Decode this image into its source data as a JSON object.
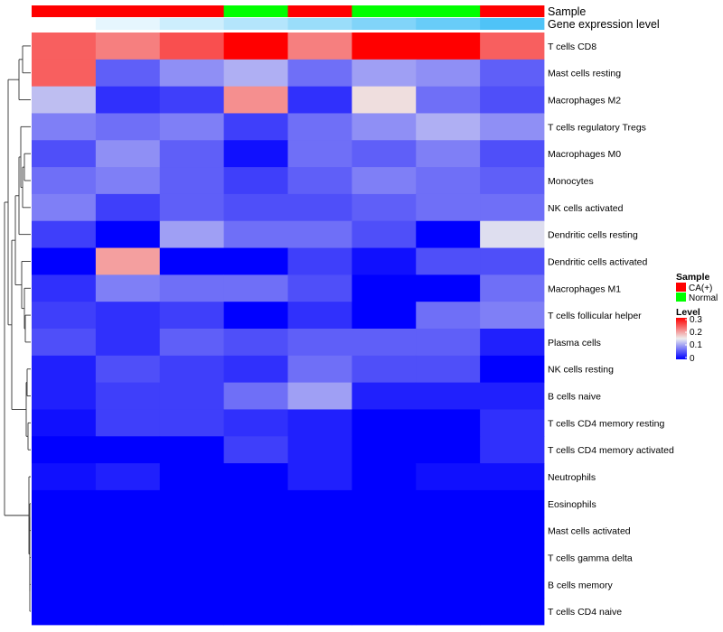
{
  "chart_data": {
    "type": "heatmap",
    "rows": [
      "T cells CD8",
      "Mast cells resting",
      "Macrophages M2",
      "T cells regulatory  Tregs",
      "Macrophages M0",
      "Monocytes",
      "NK cells activated",
      "Dendritic cells resting",
      "Dendritic cells activated",
      "Macrophages M1",
      "T cells follicular helper",
      "Plasma cells",
      "NK cells resting",
      "B cells naive",
      "T cells CD4 memory resting",
      "T cells CD4 memory activated",
      "Neutrophils",
      "Eosinophils",
      "Mast cells activated",
      "T cells gamma delta",
      "B cells memory",
      "T cells CD4 naive"
    ],
    "column_annotations": [
      {
        "name": "Sample",
        "values": [
          "CA(+)",
          "CA(+)",
          "CA(+)",
          "Normal",
          "CA(+)",
          "Normal",
          "Normal",
          "CA(+)"
        ]
      },
      {
        "name": "Gene expression level",
        "values": [
          0.0,
          0.03,
          0.06,
          0.09,
          0.12,
          0.15,
          0.18,
          0.21
        ]
      }
    ],
    "values": [
      [
        0.24,
        0.22,
        0.25,
        0.3,
        0.22,
        0.3,
        0.3,
        0.24
      ],
      [
        0.24,
        0.06,
        0.09,
        0.11,
        0.07,
        0.1,
        0.09,
        0.06
      ],
      [
        0.12,
        0.03,
        0.04,
        0.21,
        0.03,
        0.16,
        0.07,
        0.05
      ],
      [
        0.08,
        0.07,
        0.08,
        0.04,
        0.07,
        0.09,
        0.11,
        0.09
      ],
      [
        0.05,
        0.09,
        0.06,
        0.01,
        0.07,
        0.06,
        0.08,
        0.05
      ],
      [
        0.07,
        0.08,
        0.06,
        0.04,
        0.06,
        0.08,
        0.07,
        0.06
      ],
      [
        0.08,
        0.04,
        0.06,
        0.05,
        0.05,
        0.06,
        0.07,
        0.07
      ],
      [
        0.04,
        0.0,
        0.1,
        0.07,
        0.07,
        0.05,
        0.0,
        0.14
      ],
      [
        0.0,
        0.2,
        0.0,
        0.0,
        0.04,
        0.01,
        0.05,
        0.05
      ],
      [
        0.03,
        0.08,
        0.07,
        0.07,
        0.05,
        0.0,
        0.0,
        0.07
      ],
      [
        0.04,
        0.03,
        0.04,
        0.0,
        0.03,
        0.0,
        0.07,
        0.08
      ],
      [
        0.05,
        0.03,
        0.06,
        0.05,
        0.06,
        0.06,
        0.06,
        0.02
      ],
      [
        0.02,
        0.05,
        0.04,
        0.03,
        0.07,
        0.05,
        0.05,
        0.0
      ],
      [
        0.02,
        0.04,
        0.04,
        0.07,
        0.1,
        0.02,
        0.02,
        0.02
      ],
      [
        0.01,
        0.04,
        0.04,
        0.03,
        0.02,
        0.0,
        0.0,
        0.03
      ],
      [
        0.0,
        0.0,
        0.0,
        0.04,
        0.02,
        0.0,
        0.0,
        0.03
      ],
      [
        0.01,
        0.02,
        0.0,
        0.0,
        0.02,
        0.0,
        0.01,
        0.01
      ],
      [
        0.0,
        0.0,
        0.0,
        0.0,
        0.0,
        0.0,
        0.0,
        0.0
      ],
      [
        0.0,
        0.0,
        0.0,
        0.0,
        0.0,
        0.0,
        0.0,
        0.0
      ],
      [
        0.0,
        0.0,
        0.0,
        0.0,
        0.0,
        0.0,
        0.0,
        0.0
      ],
      [
        0.0,
        0.0,
        0.0,
        0.0,
        0.0,
        0.0,
        0.0,
        0.0
      ],
      [
        0.0,
        0.0,
        0.0,
        0.0,
        0.0,
        0.0,
        0.0,
        0.0
      ]
    ],
    "color_scale": {
      "stops": [
        {
          "value": 0,
          "color": "#0000ff"
        },
        {
          "value": 0.15,
          "color": "#eeeeee"
        },
        {
          "value": 0.3,
          "color": "#ff0000"
        }
      ],
      "range": [
        0,
        0.3
      ]
    },
    "legend": {
      "placement": "right",
      "sample_title": "Sample",
      "sample_entries": [
        {
          "label": "CA(+)",
          "color": "#ff0000"
        },
        {
          "label": "Normal",
          "color": "#00ff00"
        }
      ],
      "level_title": "Level",
      "level_ticks": [
        "0.3",
        "0.2",
        "0.1",
        "0"
      ]
    },
    "annotation_colors": {
      "gene_expression_low": "#ffffff",
      "gene_expression_high": "#4fc3f7"
    }
  }
}
